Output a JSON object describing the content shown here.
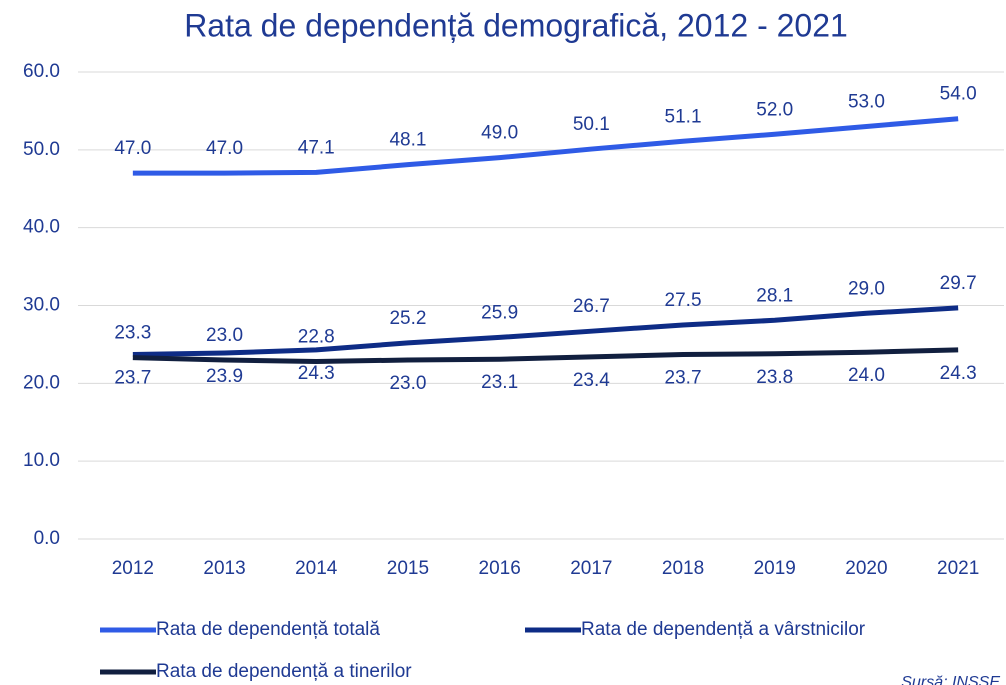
{
  "chart_data": {
    "type": "line",
    "title": "Rata de dependență demografică, 2012 - 2021",
    "categories": [
      "2012",
      "2013",
      "2014",
      "2015",
      "2016",
      "2017",
      "2018",
      "2019",
      "2020",
      "2021"
    ],
    "series": [
      {
        "name": "Rata de dependență totală",
        "color": "#2f5be6",
        "values": [
          47.0,
          47.0,
          47.1,
          48.1,
          49.0,
          50.1,
          51.1,
          52.0,
          53.0,
          54.0
        ],
        "value_labels": [
          "47.0",
          "47.0",
          "47.1",
          "48.1",
          "49.0",
          "50.1",
          "51.1",
          "52.0",
          "53.0",
          "54.0"
        ]
      },
      {
        "name": "Rata de dependență a vârstnicilor",
        "color": "#0e2c86",
        "values": [
          23.7,
          23.9,
          24.3,
          25.2,
          25.9,
          26.7,
          27.5,
          28.1,
          29.0,
          29.7
        ],
        "value_labels": [
          "23.7",
          "23.9",
          "24.3",
          "25.2",
          "25.9",
          "26.7",
          "27.5",
          "28.1",
          "29.0",
          "29.7"
        ]
      },
      {
        "name": "Rata de dependență a tinerilor",
        "color": "#111f3f",
        "values": [
          23.3,
          23.0,
          22.8,
          23.0,
          23.1,
          23.4,
          23.7,
          23.8,
          24.0,
          24.3
        ],
        "value_labels": [
          "23.3",
          "23.0",
          "22.8",
          "23.0",
          "23.1",
          "23.4",
          "23.7",
          "23.8",
          "24.0",
          "24.3"
        ]
      }
    ],
    "ylim": [
      0,
      60
    ],
    "yticks": [
      {
        "value": 0,
        "label": "0.0"
      },
      {
        "value": 10,
        "label": "10.0"
      },
      {
        "value": 20,
        "label": "20.0"
      },
      {
        "value": 30,
        "label": "30.0"
      },
      {
        "value": 40,
        "label": "40.0"
      },
      {
        "value": 50,
        "label": "50.0"
      },
      {
        "value": 60,
        "label": "60.0"
      }
    ],
    "grid": true,
    "source": "Sursă: INSSE"
  }
}
